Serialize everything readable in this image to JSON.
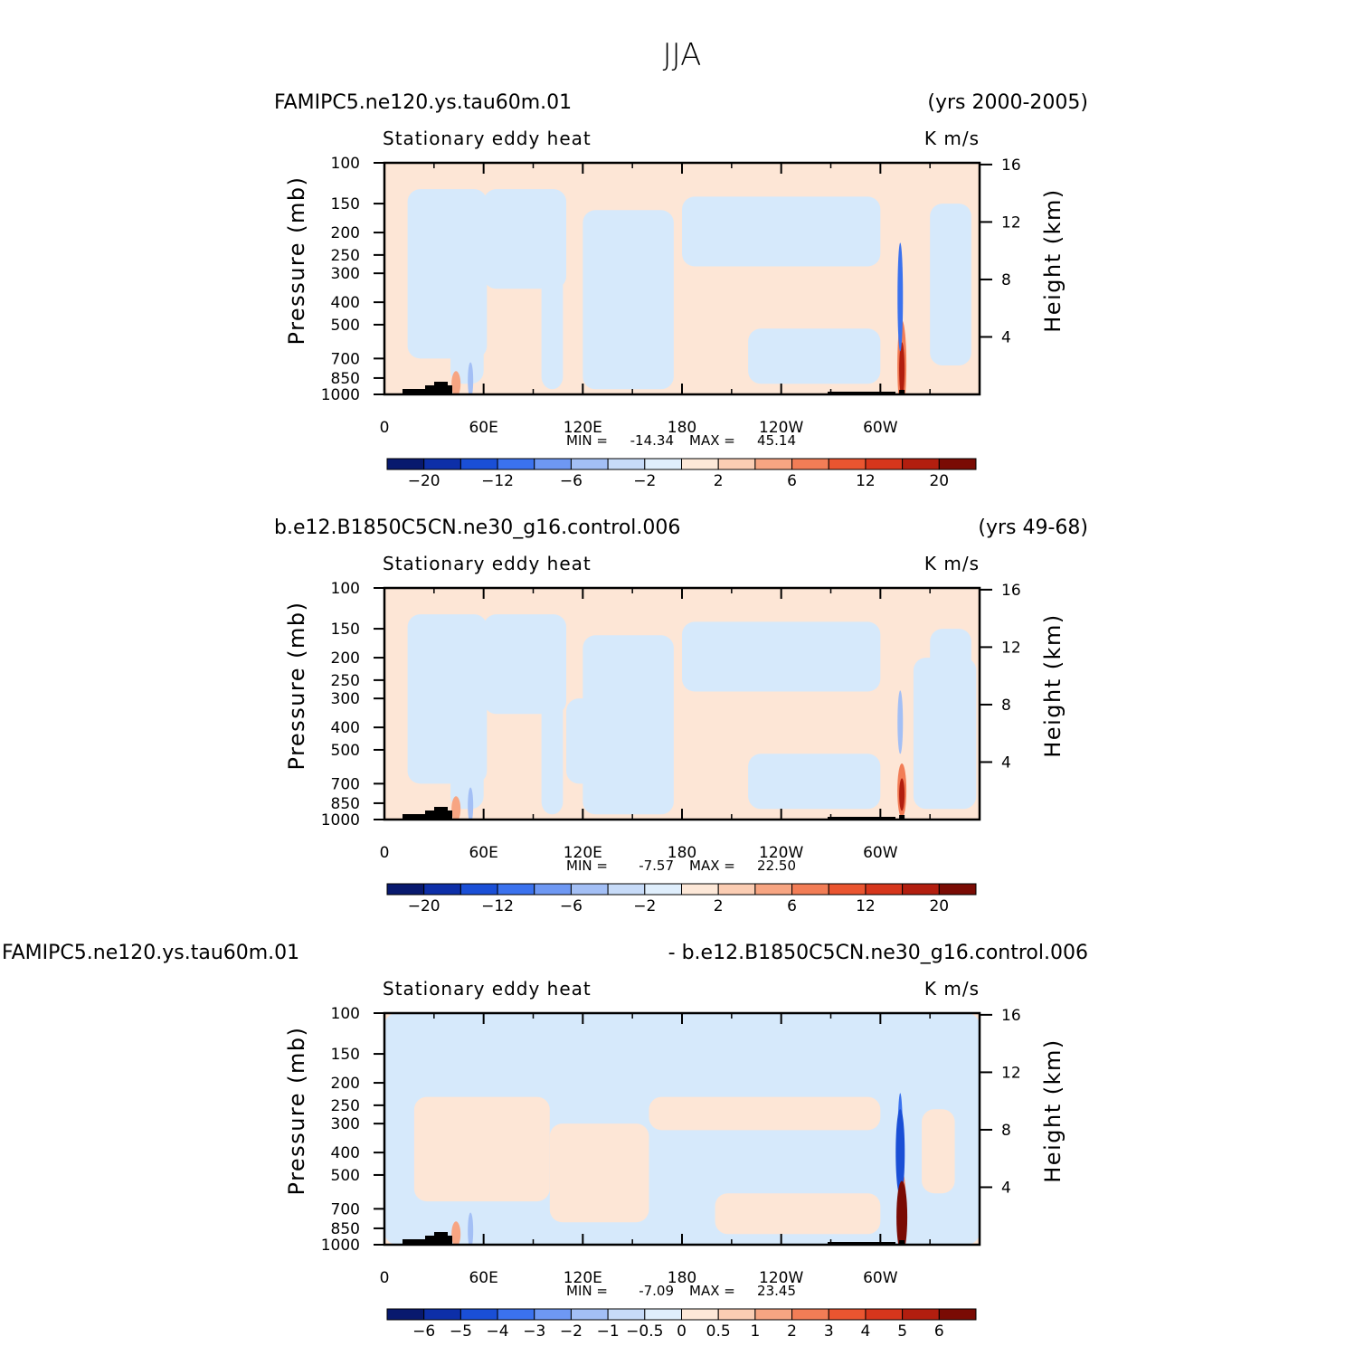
{
  "figure": {
    "title": "JJA",
    "colors": {
      "ink": "#000000",
      "terrain": "#000000",
      "contour_neutral_pos": "#fde6d6",
      "contour_neutral_neg": "#d6e9fb"
    }
  },
  "chart_data": [
    {
      "type": "heatmap",
      "left_title": "FAMIPC5.ne120.ys.tau60m.01",
      "right_title": "(yrs 2000-2005)",
      "subtitle": "Stationary eddy heat",
      "units": "K m/s",
      "ylabel": "Pressure (mb)",
      "ylabel_right": "Height (km)",
      "x_ticks": [
        "0",
        "60E",
        "120E",
        "180",
        "120W",
        "60W"
      ],
      "x_range": [
        0,
        360
      ],
      "y_ticks": [
        "100",
        "150",
        "200",
        "250",
        "300",
        "400",
        "500",
        "700",
        "850",
        "1000"
      ],
      "y_range_mb": [
        1000,
        100
      ],
      "height_ticks": [
        "16",
        "12",
        "8",
        "4"
      ],
      "stats": {
        "min": "-14.34",
        "max": "45.14"
      },
      "colorbar": {
        "labels": [
          "-20",
          "-12",
          "-6",
          "-2",
          "2",
          "6",
          "12",
          "20"
        ],
        "colors": [
          "#08196e",
          "#0d2fa8",
          "#1a4fd6",
          "#3b72ee",
          "#6e98f3",
          "#a3bff5",
          "#c7dbf8",
          "#dfeefc",
          "#fde8d8",
          "#fbcdb3",
          "#f7a582",
          "#f27d56",
          "#ea5530",
          "#d6361c",
          "#b21e0f",
          "#7a0b04"
        ]
      },
      "features": {
        "red_plume_lon": 313,
        "blue_plume_lon": 312,
        "africa_plume_lon": 28
      }
    },
    {
      "type": "heatmap",
      "left_title": "b.e12.B1850C5CN.ne30_g16.control.006",
      "right_title": "(yrs 49-68)",
      "subtitle": "Stationary eddy heat",
      "units": "K m/s",
      "ylabel": "Pressure (mb)",
      "ylabel_right": "Height (km)",
      "x_ticks": [
        "0",
        "60E",
        "120E",
        "180",
        "120W",
        "60W"
      ],
      "x_range": [
        0,
        360
      ],
      "y_ticks": [
        "100",
        "150",
        "200",
        "250",
        "300",
        "400",
        "500",
        "700",
        "850",
        "1000"
      ],
      "y_range_mb": [
        1000,
        100
      ],
      "height_ticks": [
        "16",
        "12",
        "8",
        "4"
      ],
      "stats": {
        "min": "-7.57",
        "max": "22.50"
      },
      "colorbar": {
        "labels": [
          "-20",
          "-12",
          "-6",
          "-2",
          "2",
          "6",
          "12",
          "20"
        ],
        "colors": [
          "#08196e",
          "#0d2fa8",
          "#1a4fd6",
          "#3b72ee",
          "#6e98f3",
          "#a3bff5",
          "#c7dbf8",
          "#dfeefc",
          "#fde8d8",
          "#fbcdb3",
          "#f7a582",
          "#f27d56",
          "#ea5530",
          "#d6361c",
          "#b21e0f",
          "#7a0b04"
        ]
      },
      "features": {
        "red_plume_lon": 313,
        "blue_plume_lon": 312,
        "africa_plume_lon": 28
      }
    },
    {
      "type": "heatmap",
      "left_title": "FAMIPC5.ne120.ys.tau60m.01",
      "right_title": "- b.e12.B1850C5CN.ne30_g16.control.006",
      "subtitle": "Stationary eddy heat",
      "units": "K m/s",
      "ylabel": "Pressure (mb)",
      "ylabel_right": "Height (km)",
      "x_ticks": [
        "0",
        "60E",
        "120E",
        "180",
        "120W",
        "60W"
      ],
      "x_range": [
        0,
        360
      ],
      "y_ticks": [
        "100",
        "150",
        "200",
        "250",
        "300",
        "400",
        "500",
        "700",
        "850",
        "1000"
      ],
      "y_range_mb": [
        1000,
        100
      ],
      "height_ticks": [
        "16",
        "12",
        "8",
        "4"
      ],
      "stats": {
        "min": "-7.09",
        "max": "23.45"
      },
      "colorbar": {
        "labels": [
          "-6",
          "-5",
          "-4",
          "-3",
          "-2",
          "-1",
          "-0.5",
          "0",
          "0.5",
          "1",
          "2",
          "3",
          "4",
          "5",
          "6"
        ],
        "colors": [
          "#08196e",
          "#0d2fa8",
          "#1a4fd6",
          "#3b72ee",
          "#6e98f3",
          "#a3bff5",
          "#c7dbf8",
          "#dfeefc",
          "#fde8d8",
          "#fbcdb3",
          "#f7a582",
          "#f27d56",
          "#ea5530",
          "#d6361c",
          "#b21e0f",
          "#7a0b04"
        ]
      },
      "features": {
        "red_plume_lon": 313,
        "blue_plume_lon": 312,
        "africa_plume_lon": 28
      }
    }
  ]
}
